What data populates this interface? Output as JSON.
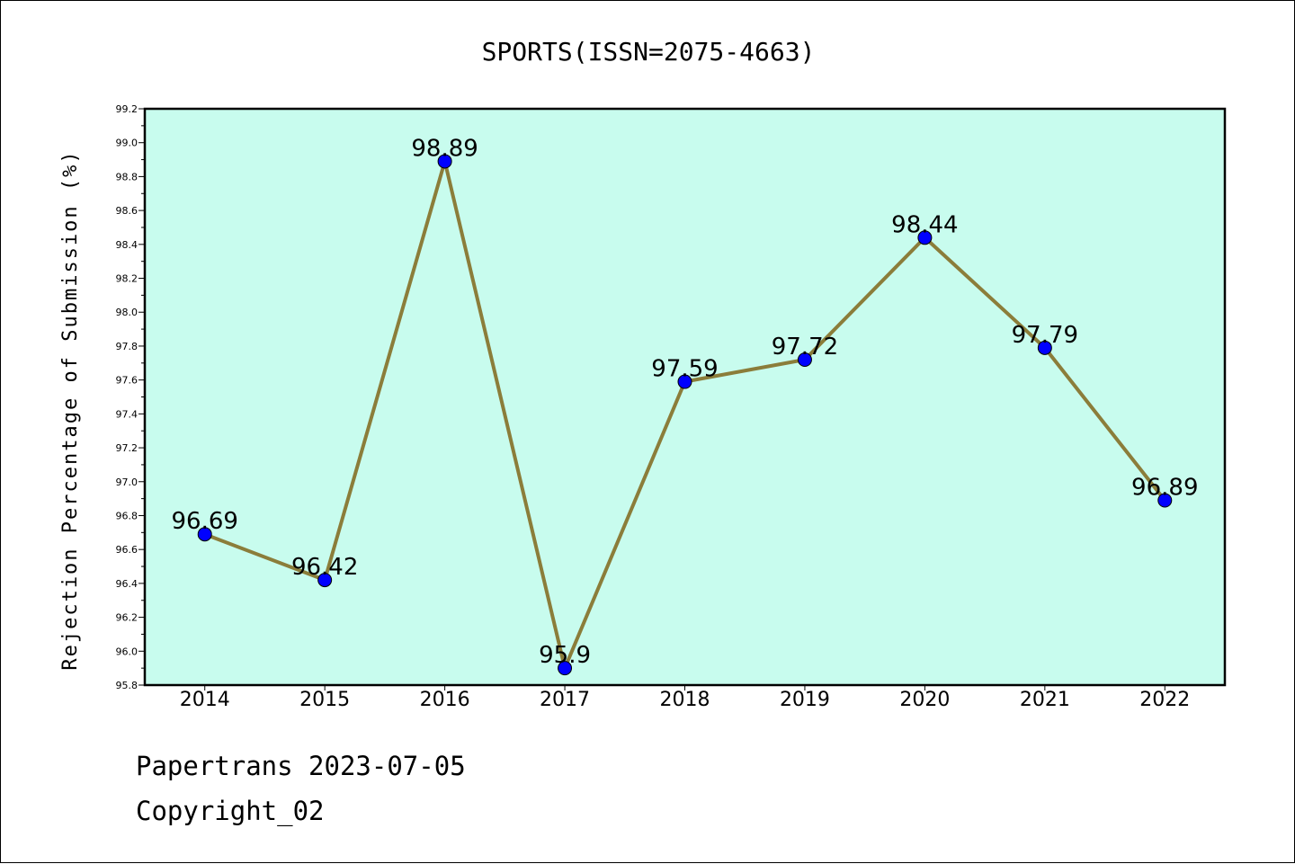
{
  "chart_data": {
    "type": "line",
    "title": "SPORTS(ISSN=2075-4663)",
    "xlabel": "",
    "ylabel": "Rejection Percentage of Submission (%)",
    "x": [
      "2014",
      "2015",
      "2016",
      "2017",
      "2018",
      "2019",
      "2020",
      "2021",
      "2022"
    ],
    "series": [
      {
        "values": [
          96.69,
          96.42,
          98.89,
          95.9,
          97.59,
          97.72,
          98.44,
          97.79,
          96.89
        ],
        "labels": [
          "96.69",
          "96.42",
          "98.89",
          "95.9",
          "97.59",
          "97.72",
          "98.44",
          "97.79",
          "96.89"
        ]
      }
    ],
    "ylim": [
      95.8,
      99.2
    ],
    "yticks": [
      "95.8",
      "96.0",
      "96.2",
      "96.4",
      "96.6",
      "96.8",
      "97.0",
      "97.2",
      "97.4",
      "97.6",
      "97.8",
      "98.0",
      "98.2",
      "98.4",
      "98.6",
      "98.8",
      "99.0",
      "99.2"
    ],
    "grid": false,
    "colors": {
      "plot_background": "#c8fcee",
      "line": "#8b7d3a",
      "marker": "#0000ff"
    }
  },
  "footer": {
    "line1": "Papertrans 2023-07-05",
    "line2": "Copyright_02"
  }
}
